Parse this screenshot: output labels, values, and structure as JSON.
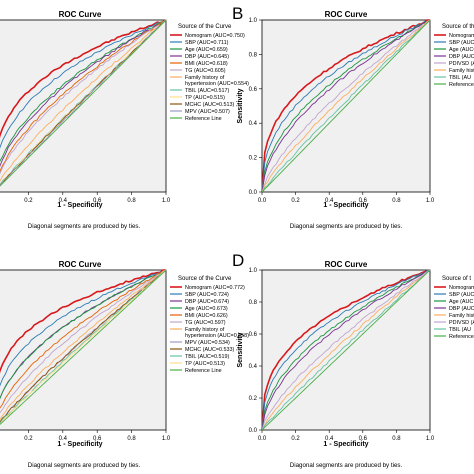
{
  "panel_letters": [
    "B",
    "D"
  ],
  "chart_data": [
    {
      "type": "line",
      "title": "ROC Curve",
      "xlabel": "1 - Specificity",
      "ylabel": "",
      "footnote": "Diagonal segments are produced by ties.",
      "legend_title": "Source of the Curve",
      "xticks": [
        "0.2",
        "0.4",
        "0.6",
        "0.8",
        "1.0"
      ],
      "yticks": [],
      "xlim": [
        0,
        1
      ],
      "ylim": [
        0,
        1
      ],
      "grid": false,
      "legend_position": "right",
      "series": [
        {
          "name": "Nomogram (AUC=0.750)",
          "auc": 0.75,
          "color": "#d7191c"
        },
        {
          "name": "SBP (AUC=0.711)",
          "auc": 0.711,
          "color": "#2c7bb6"
        },
        {
          "name": "Age (AUC=0.659)",
          "auc": 0.659,
          "color": "#1a9641"
        },
        {
          "name": "DBP (AUC=0.645)",
          "auc": 0.645,
          "color": "#7b3294"
        },
        {
          "name": "BMI (AUC=0.618)",
          "auc": 0.618,
          "color": "#e66101"
        },
        {
          "name": "TG (AUC=0.605)",
          "auc": 0.605,
          "color": "#c2a5cf"
        },
        {
          "name": "Family history of hypertension (AUC=0.554)",
          "auc": 0.554,
          "color": "#fdae61"
        },
        {
          "name": "TBIL (AUC=0.517)",
          "auc": 0.517,
          "color": "#66c2a5"
        },
        {
          "name": "TP (AUC=0.515)",
          "auc": 0.515,
          "color": "#fee08b"
        },
        {
          "name": "MCHC (AUC=0.513)",
          "auc": 0.513,
          "color": "#8c510a"
        },
        {
          "name": "MPV (AUC=0.507)",
          "auc": 0.507,
          "color": "#9e9ac8"
        },
        {
          "name": "Reference Line",
          "auc": 0.5,
          "color": "#4daf4a"
        }
      ]
    },
    {
      "type": "line",
      "title": "ROC Curve",
      "xlabel": "1 - Specificity",
      "ylabel": "Sensitivity",
      "footnote": "Diagonal segments are produced by ties.",
      "legend_title": "Source of the",
      "xticks": [
        "0.0",
        "0.2",
        "0.4",
        "0.6",
        "0.8",
        "1.0"
      ],
      "yticks": [
        "0.0",
        "0.2",
        "0.4",
        "0.6",
        "0.8",
        "1.0"
      ],
      "xlim": [
        0,
        1
      ],
      "ylim": [
        0,
        1
      ],
      "grid": false,
      "legend_position": "right",
      "series": [
        {
          "name": "Nomogram (AU",
          "auc": 0.735,
          "color": "#d7191c"
        },
        {
          "name": "SBP (AUC=",
          "auc": 0.7,
          "color": "#2c7bb6"
        },
        {
          "name": "Age (AUC=",
          "auc": 0.66,
          "color": "#1a9641"
        },
        {
          "name": "DBP (AUC=",
          "auc": 0.64,
          "color": "#7b3294"
        },
        {
          "name": "PDIVSD (AU",
          "auc": 0.58,
          "color": "#c2a5cf"
        },
        {
          "name": "Family histo hypertension",
          "auc": 0.55,
          "color": "#fdae61"
        },
        {
          "name": "TBIL (AU",
          "auc": 0.52,
          "color": "#66c2a5"
        },
        {
          "name": "Reference L",
          "auc": 0.5,
          "color": "#4daf4a"
        }
      ]
    },
    {
      "type": "line",
      "title": "ROC Curve",
      "xlabel": "1 - Specificity",
      "ylabel": "",
      "footnote": "Diagonal segments are produced by ties.",
      "legend_title": "Source of the Curve",
      "xticks": [
        "0.2",
        "0.4",
        "0.6",
        "0.8",
        "1.0"
      ],
      "yticks": [],
      "xlim": [
        0,
        1
      ],
      "ylim": [
        0,
        1
      ],
      "grid": false,
      "legend_position": "right",
      "series": [
        {
          "name": "Nomogram (AUC=0.772)",
          "auc": 0.772,
          "color": "#d7191c"
        },
        {
          "name": "SBP (AUC=0.724)",
          "auc": 0.724,
          "color": "#2c7bb6"
        },
        {
          "name": "DBP (AUC=0.674)",
          "auc": 0.674,
          "color": "#7b3294"
        },
        {
          "name": "Age (AUC=0.673)",
          "auc": 0.673,
          "color": "#1a9641"
        },
        {
          "name": "BMI (AUC=0.626)",
          "auc": 0.626,
          "color": "#e66101"
        },
        {
          "name": "TG (AUC=0.597)",
          "auc": 0.597,
          "color": "#c2a5cf"
        },
        {
          "name": "Family history of hypertension (AUC=0.558)",
          "auc": 0.558,
          "color": "#fdae61"
        },
        {
          "name": "MPV (AUC=0.534)",
          "auc": 0.534,
          "color": "#9e9ac8"
        },
        {
          "name": "MCHC (AUC=0.533)",
          "auc": 0.533,
          "color": "#8c510a"
        },
        {
          "name": "TBIL (AUC=0.519)",
          "auc": 0.519,
          "color": "#66c2a5"
        },
        {
          "name": "TP (AUC=0.513)",
          "auc": 0.513,
          "color": "#fee08b"
        },
        {
          "name": "Reference Line",
          "auc": 0.5,
          "color": "#4daf4a"
        }
      ]
    },
    {
      "type": "line",
      "title": "ROC Curve",
      "xlabel": "1 - Specificity",
      "ylabel": "Sensitivity",
      "footnote": "Diagonal segments are produced by ties.",
      "legend_title": "Source of t",
      "xticks": [
        "0.0",
        "0.2",
        "0.4",
        "0.6",
        "0.8",
        "1.0"
      ],
      "yticks": [
        "0.0",
        "0.2",
        "0.4",
        "0.6",
        "0.8",
        "1.0"
      ],
      "xlim": [
        0,
        1
      ],
      "ylim": [
        0,
        1
      ],
      "grid": false,
      "legend_position": "right",
      "series": [
        {
          "name": "Nomogram",
          "auc": 0.73,
          "color": "#d7191c"
        },
        {
          "name": "SBP (AUC",
          "auc": 0.7,
          "color": "#2c7bb6"
        },
        {
          "name": "Age (AUC",
          "auc": 0.66,
          "color": "#1a9641"
        },
        {
          "name": "DBP (AUC",
          "auc": 0.64,
          "color": "#7b3294"
        },
        {
          "name": "Family histo hypertension",
          "auc": 0.55,
          "color": "#fdae61"
        },
        {
          "name": "PDIVSD (A",
          "auc": 0.58,
          "color": "#c2a5cf"
        },
        {
          "name": "TBIL (AU",
          "auc": 0.52,
          "color": "#66c2a5"
        },
        {
          "name": "Reference L",
          "auc": 0.5,
          "color": "#4daf4a"
        }
      ]
    }
  ]
}
